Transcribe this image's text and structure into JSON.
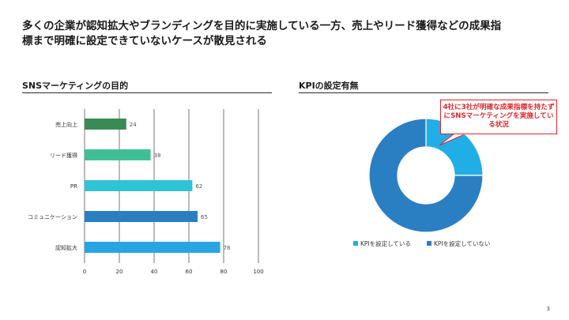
{
  "headline": {
    "line1": "多くの企業が認知拡大やブランディングを目的に実施している一方、売上やリード獲得などの成果指",
    "line2": "標まで明確に設定できていないケースが散見される"
  },
  "left_panel": {
    "title": "SNSマーケティングの目的"
  },
  "right_panel": {
    "title": "KPIの設定有無"
  },
  "callout": {
    "text": "4社に3社が明確な成果指標を持たずにSNSマーケティングを実施している状況"
  },
  "page_number": "3",
  "colors": {
    "bars": [
      "#3a8a55",
      "#40bf96",
      "#2ec4d6",
      "#2a7fc3",
      "#27a5e3"
    ],
    "donut": [
      "#21aee6",
      "#2a7fc3"
    ],
    "callout": "#e0252b",
    "grid": "#555555"
  },
  "chart_data": [
    {
      "type": "bar",
      "orientation": "horizontal",
      "title": "SNSマーケティングの目的",
      "categories": [
        "売上向上",
        "リード獲得",
        "PR",
        "コミュニケーション",
        "認知拡大"
      ],
      "values": [
        24,
        38,
        62,
        65,
        78
      ],
      "xlim": [
        0,
        100
      ],
      "xticks": [
        0,
        20,
        40,
        60,
        80,
        100
      ],
      "grid": true,
      "xlabel": "",
      "ylabel": ""
    },
    {
      "type": "pie",
      "variant": "donut",
      "title": "KPIの設定有無",
      "labels": [
        "KPIを設定している",
        "KPIを設定していない"
      ],
      "values": [
        25,
        75
      ],
      "legend_position": "bottom"
    }
  ]
}
